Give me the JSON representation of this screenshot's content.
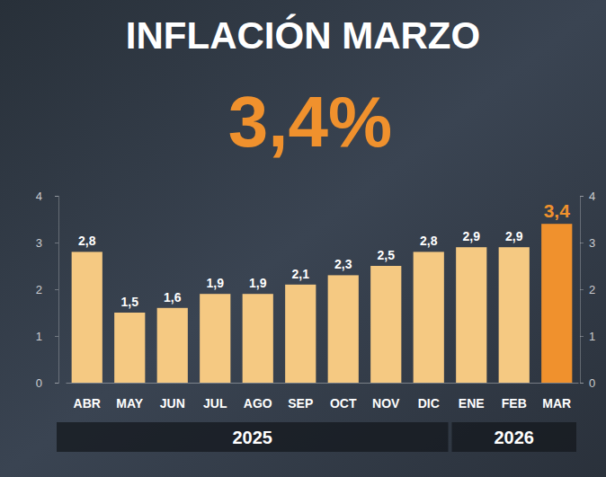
{
  "chart_data": {
    "type": "bar",
    "title": "INFLACIÓN MARZO",
    "subtitle": "3,4%",
    "categories": [
      "ABR",
      "MAY",
      "JUN",
      "JUL",
      "AGO",
      "SEP",
      "OCT",
      "NOV",
      "DIC",
      "ENE",
      "FEB",
      "MAR"
    ],
    "values": [
      2.8,
      1.5,
      1.6,
      1.9,
      1.9,
      2.1,
      2.3,
      2.5,
      2.8,
      2.9,
      2.9,
      3.4
    ],
    "value_labels": [
      "2,8",
      "1,5",
      "1,6",
      "1,9",
      "1,9",
      "2,1",
      "2,3",
      "2,5",
      "2,8",
      "2,9",
      "2,9",
      "3,4"
    ],
    "colors": [
      "#f5c982",
      "#f5c982",
      "#f5c982",
      "#f5c982",
      "#f5c982",
      "#f5c982",
      "#f5c982",
      "#f5c982",
      "#f5c982",
      "#f5c982",
      "#f5c982",
      "#f0912d"
    ],
    "x_groups": [
      {
        "label": "2025",
        "count": 9
      },
      {
        "label": "2026",
        "count": 3
      }
    ],
    "ylim": [
      0,
      4
    ],
    "yticks": [
      0,
      1,
      2,
      3,
      4
    ],
    "y2lim": [
      0,
      4
    ],
    "y2ticks": [
      0,
      1,
      2,
      3,
      4
    ],
    "data_labels": true,
    "grid": false
  }
}
